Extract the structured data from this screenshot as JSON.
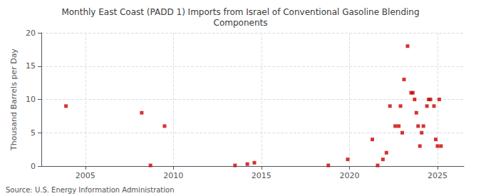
{
  "chart_data": {
    "type": "scatter",
    "title": "Monthly East Coast (PADD 1) Imports from Israel of Conventional Gasoline Blending\nComponents",
    "ylabel": "Thousand Barrels per Day",
    "source": "Source: U.S. Energy Information Administration",
    "color": "#cc0000",
    "marker": "square",
    "grid": true,
    "xlim": [
      2002.5,
      2026.5
    ],
    "ylim": [
      0,
      20
    ],
    "xticks": [
      2005,
      2010,
      2015,
      2020,
      2025
    ],
    "yticks": [
      0,
      5,
      10,
      15,
      20
    ],
    "x": [
      2003.9,
      2008.2,
      2009.5,
      2008.7,
      2013.5,
      2014.2,
      2014.6,
      2018.8,
      2019.9,
      2021.3,
      2021.6,
      2021.9,
      2022.1,
      2022.3,
      2022.6,
      2022.8,
      2022.9,
      2023.0,
      2023.1,
      2023.3,
      2023.5,
      2023.6,
      2023.7,
      2023.8,
      2023.9,
      2024.0,
      2024.1,
      2024.2,
      2024.4,
      2024.5,
      2024.6,
      2024.8,
      2024.9,
      2025.0,
      2025.1,
      2025.2
    ],
    "values": [
      9.0,
      8.0,
      6.0,
      0.1,
      0.1,
      0.3,
      0.5,
      0.1,
      1.0,
      4.0,
      0.1,
      1.0,
      2.0,
      9.0,
      6.0,
      6.0,
      9.0,
      5.0,
      13.0,
      18.0,
      11.0,
      11.0,
      10.0,
      8.0,
      6.0,
      3.0,
      5.0,
      6.0,
      9.0,
      10.0,
      10.0,
      9.0,
      4.0,
      3.0,
      10.0,
      3.0
    ]
  }
}
